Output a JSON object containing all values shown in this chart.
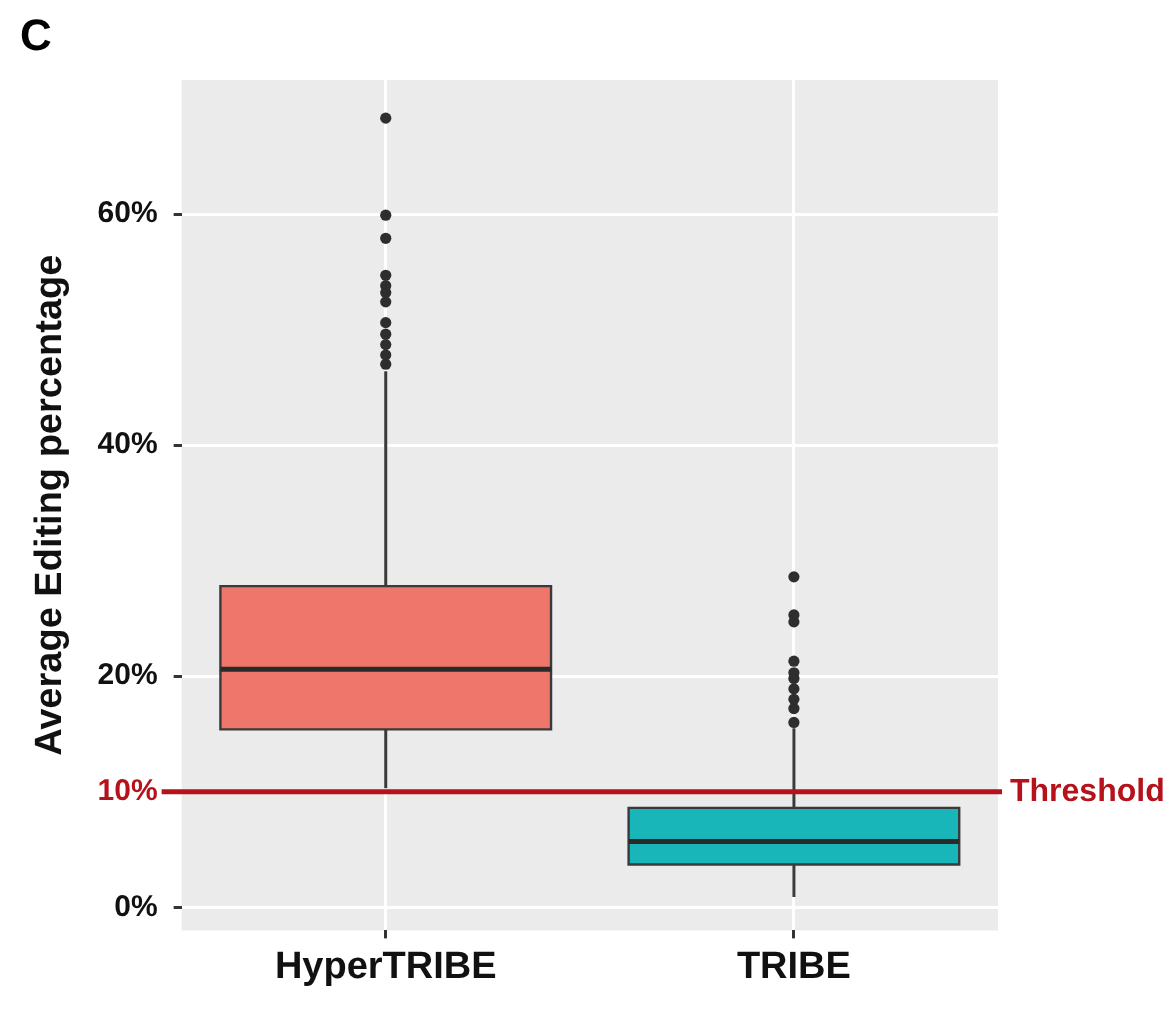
{
  "chart_data": {
    "type": "box",
    "categories": [
      "HyperTRIBE",
      "TRIBE"
    ],
    "colors": [
      "#ef766b",
      "#19b6b9"
    ],
    "boxes": [
      {
        "low": 10.3,
        "q1": 15.4,
        "median": 20.6,
        "q3": 27.8,
        "high": 46.4,
        "outliers": [
          47.0,
          47.8,
          48.7,
          49.6,
          50.6,
          52.4,
          53.2,
          53.8,
          54.7,
          57.9,
          59.9,
          68.3
        ]
      },
      {
        "low": 0.9,
        "q1": 3.7,
        "median": 5.7,
        "q3": 8.6,
        "high": 15.5,
        "outliers": [
          16.0,
          17.2,
          18.0,
          18.9,
          19.8,
          20.3,
          21.3,
          24.7,
          25.3,
          28.6
        ]
      }
    ],
    "ylabel": "Average Editing percentage",
    "ylim": [
      -2,
      71.6
    ],
    "yticks": [
      {
        "value": 0,
        "label": "0%"
      },
      {
        "value": 10,
        "label": "10%"
      },
      {
        "value": 20,
        "label": "20%"
      },
      {
        "value": 40,
        "label": "40%"
      },
      {
        "value": 60,
        "label": "60%"
      }
    ],
    "grid": true,
    "ref_lines": [
      {
        "axis": "y",
        "value": 10,
        "label": "Threshold",
        "color": "#b5121b"
      }
    ],
    "annotations": [
      "C"
    ]
  }
}
